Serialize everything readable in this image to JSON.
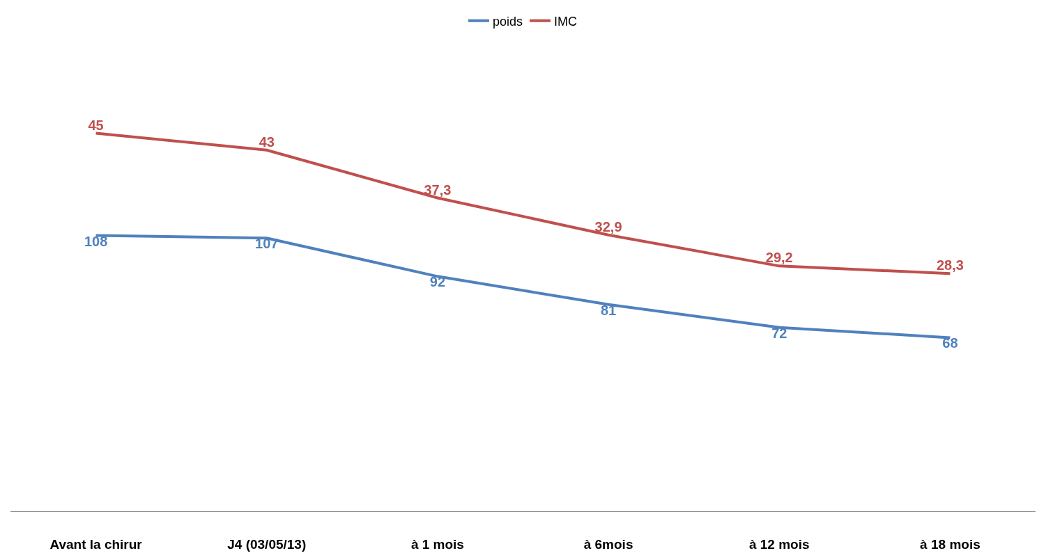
{
  "chart_data": {
    "type": "line",
    "categories": [
      "Avant la chirur",
      "J4 (03/05/13)",
      "à 1 mois",
      "à 6mois",
      "à 12 mois",
      "à 18 mois"
    ],
    "series": [
      {
        "name": "poids",
        "color": "#4f81bd",
        "values": [
          108,
          107,
          92,
          81,
          72,
          68
        ],
        "value_labels": [
          "108",
          "107",
          "92",
          "81",
          "72",
          "68"
        ]
      },
      {
        "name": "IMC",
        "color": "#c0504d",
        "values": [
          45,
          43,
          37.3,
          32.9,
          29.2,
          28.3
        ],
        "value_labels": [
          "45",
          "43",
          "37,3",
          "32,9",
          "29,2",
          "28,3"
        ],
        "axis": "y2"
      }
    ],
    "legend": "top",
    "tick_labels": "x",
    "marker": "none",
    "line_style": "solid"
  }
}
